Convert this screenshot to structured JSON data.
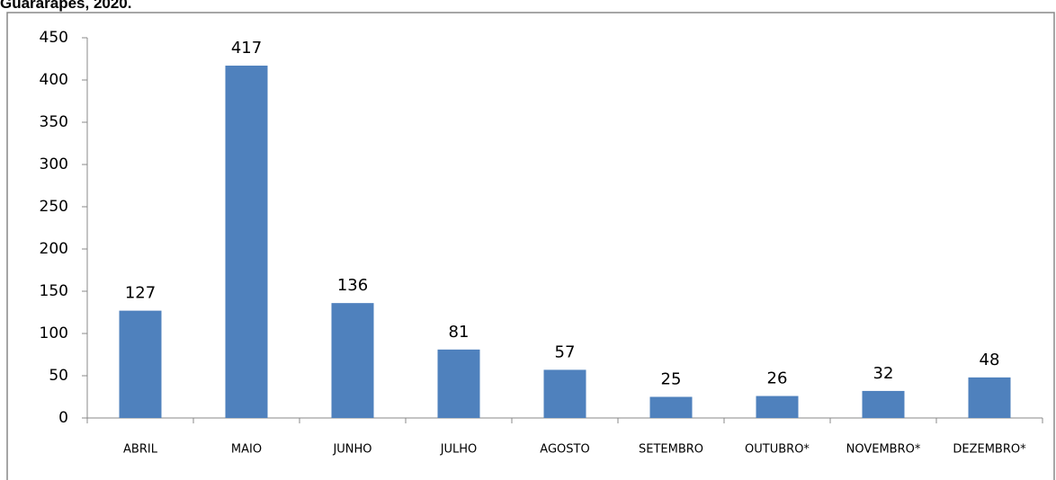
{
  "chart_data": {
    "type": "bar",
    "title": "Guararapes, 2020.",
    "categories": [
      "ABRIL",
      "MAIO",
      "JUNHO",
      "JULHO",
      "AGOSTO",
      "SETEMBRO",
      "OUTUBRO*",
      "NOVEMBRO*",
      "DEZEMBRO*"
    ],
    "values": [
      127,
      417,
      136,
      81,
      57,
      25,
      26,
      32,
      48
    ],
    "color": "#4f81bd",
    "ylim": [
      0,
      450
    ],
    "yticks": [
      0,
      50,
      100,
      150,
      200,
      250,
      300,
      350,
      400,
      450
    ],
    "grid": false
  }
}
